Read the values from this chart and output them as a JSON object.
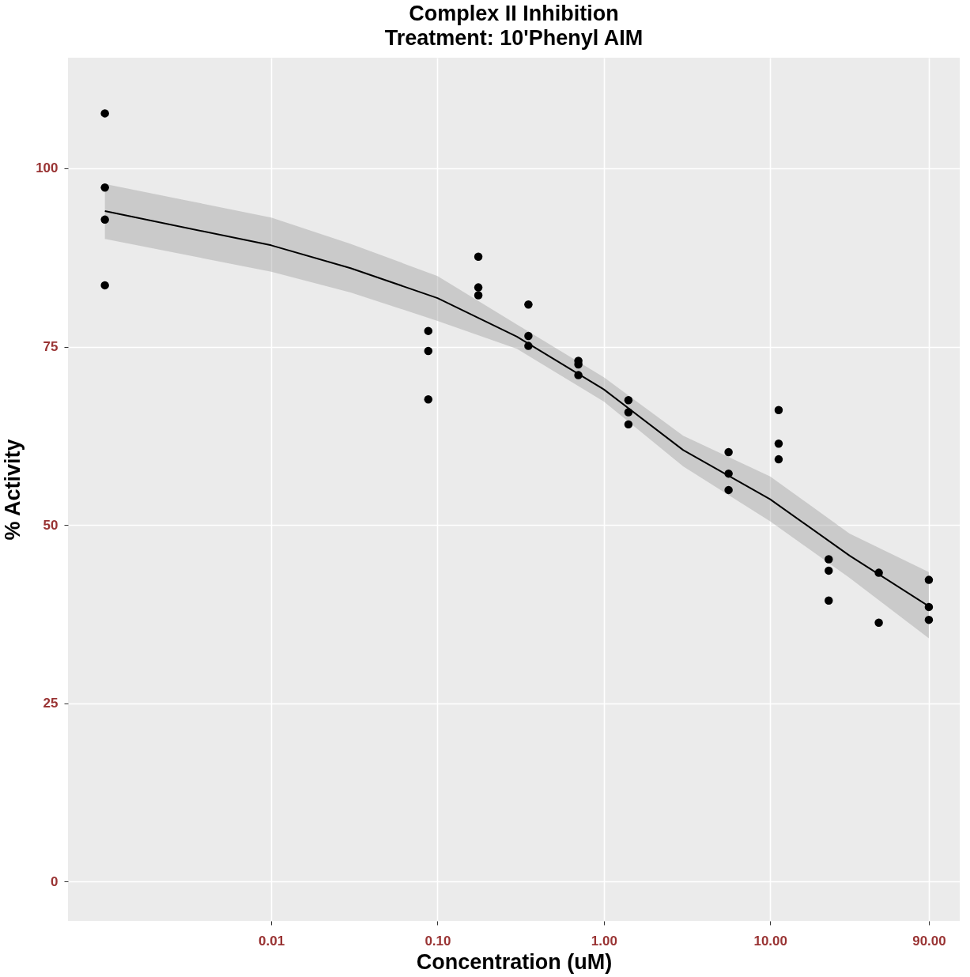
{
  "chart_data": {
    "type": "scatter",
    "title": "Complex II Inhibition",
    "subtitle": "Treatment: 10'Phenyl AIM",
    "xlabel": "Concentration (uM)",
    "ylabel": "% Activity",
    "log": "x",
    "grid": true,
    "xlim": [
      0.0006,
      138
    ],
    "xticks": [
      {
        "value": 0.01,
        "label": "0.01"
      },
      {
        "value": 0.1,
        "label": "0.10"
      },
      {
        "value": 1,
        "label": "1.00"
      },
      {
        "value": 10,
        "label": "10.00"
      },
      {
        "value": 90,
        "label": "90.00"
      }
    ],
    "ylim": [
      -5.5,
      115.5
    ],
    "yticks": [
      0,
      25,
      50,
      75,
      100
    ],
    "series": [
      {
        "marker": "circle",
        "color": "#000000",
        "x": [
          0.001,
          0.001,
          0.001,
          0.001,
          0.088,
          0.088,
          0.088,
          0.176,
          0.176,
          0.176,
          0.352,
          0.352,
          0.352,
          0.703,
          0.703,
          0.703,
          1.406,
          1.406,
          1.406,
          5.625,
          5.625,
          5.625,
          11.25,
          11.25,
          11.25,
          22.5,
          22.5,
          22.5,
          45,
          45,
          90,
          90,
          90
        ],
        "values": [
          107.7,
          97.3,
          92.8,
          83.6,
          77.2,
          74.4,
          67.6,
          87.6,
          83.3,
          82.2,
          80.9,
          76.5,
          75.1,
          73.0,
          72.5,
          71.0,
          67.5,
          65.8,
          64.1,
          60.2,
          57.2,
          54.9,
          66.1,
          61.4,
          59.2,
          45.2,
          43.6,
          39.4,
          43.3,
          36.3,
          42.3,
          38.5,
          36.7
        ]
      },
      {
        "type": "line",
        "marker": "none",
        "color": "#000000",
        "x": [
          0.001,
          0.01,
          0.03,
          0.1,
          0.3,
          1,
          3,
          10,
          30,
          90
        ],
        "values": [
          94.0,
          89.2,
          86.0,
          81.8,
          76.4,
          69.0,
          60.5,
          53.6,
          45.7,
          38.6
        ],
        "lower": [
          90.1,
          85.5,
          82.6,
          78.6,
          74.7,
          67.3,
          58.2,
          50.5,
          42.6,
          34.1
        ],
        "upper": [
          97.8,
          93.1,
          89.4,
          84.9,
          78.1,
          70.7,
          62.5,
          56.8,
          48.8,
          43.4
        ]
      }
    ]
  }
}
